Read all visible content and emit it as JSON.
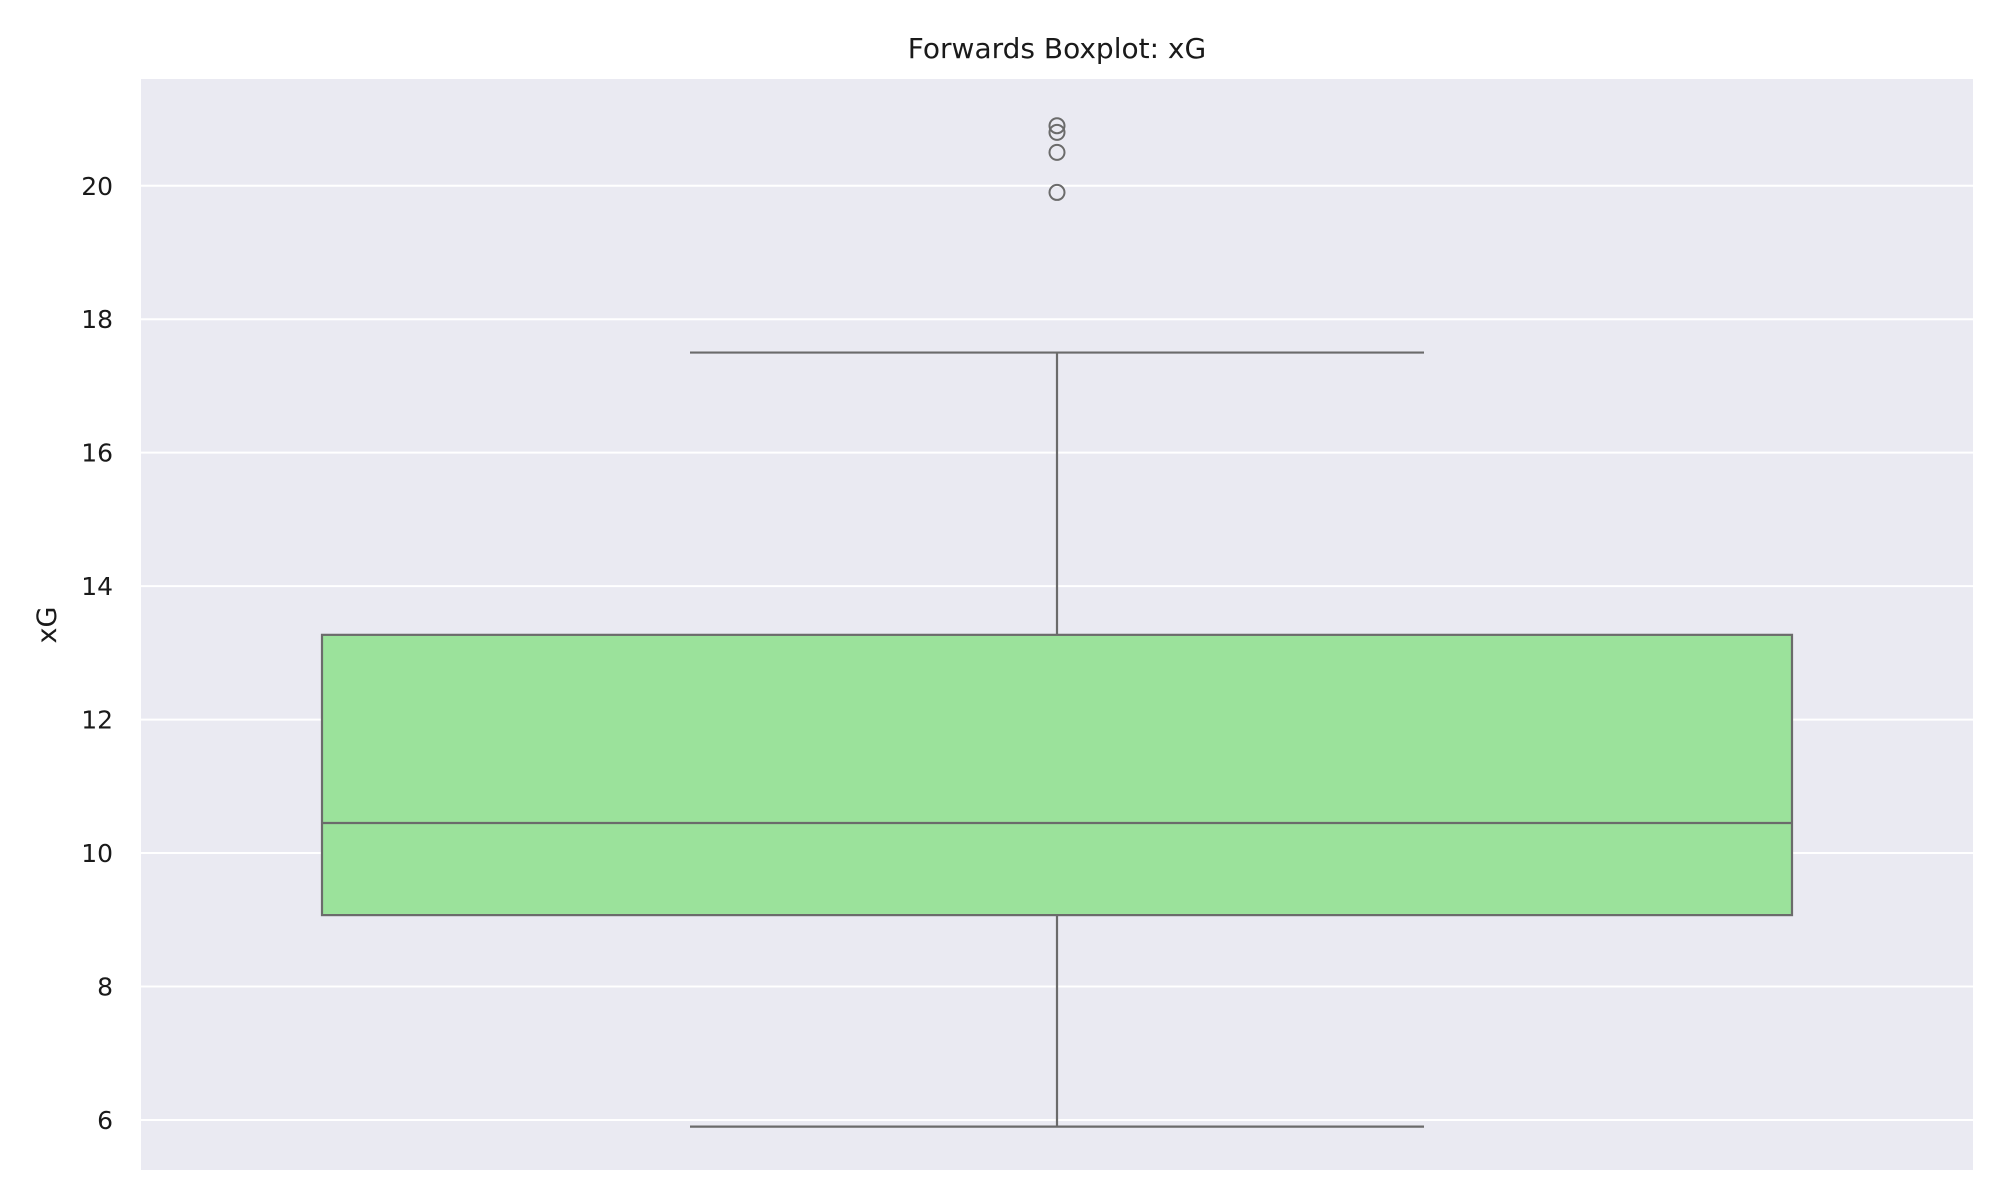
{
  "chart_data": {
    "type": "box",
    "title": "Forwards Boxplot: xG",
    "xlabel": "",
    "ylabel": "xG",
    "ylim": [
      5.25,
      21.6
    ],
    "yticks": [
      6,
      8,
      10,
      12,
      14,
      16,
      18,
      20
    ],
    "grid": true,
    "box": {
      "whisker_low": 5.9,
      "q1": 9.07,
      "median": 10.45,
      "q3": 13.27,
      "whisker_high": 17.5,
      "outliers": [
        19.9,
        20.5,
        20.8,
        20.9
      ]
    },
    "colors": {
      "background": "#eaeaf2",
      "grid": "#ffffff",
      "box_fill": "#9be29b",
      "line": "#6b6b6b"
    }
  }
}
